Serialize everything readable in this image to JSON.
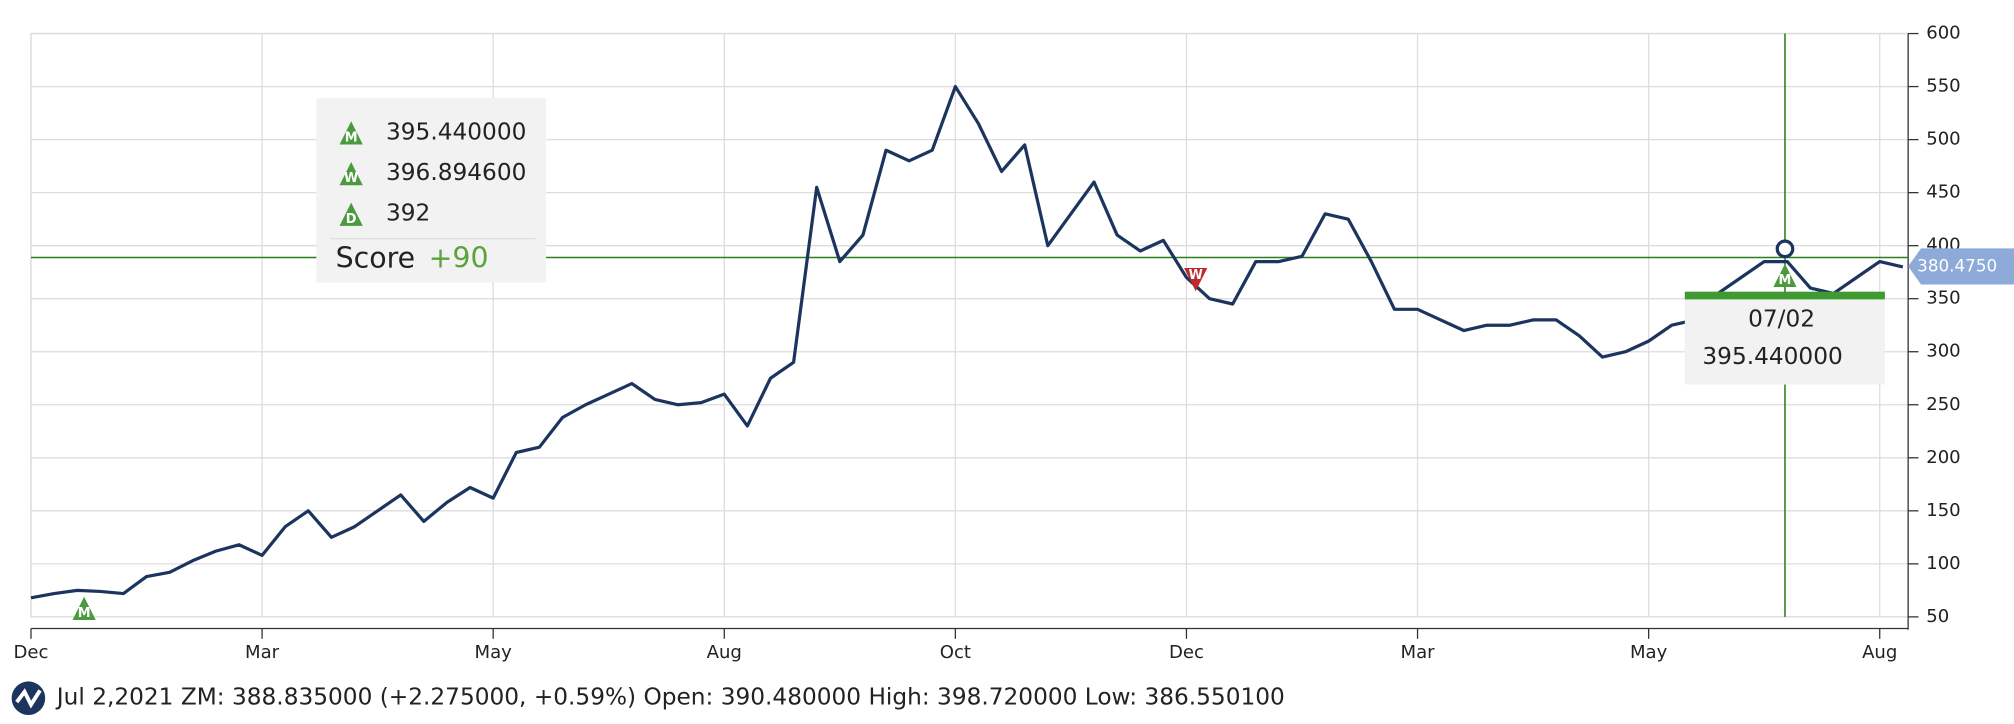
{
  "chart_data": {
    "type": "line",
    "categories": [
      "Dec",
      null,
      null,
      null,
      null,
      null,
      null,
      null,
      null,
      null,
      "Mar",
      null,
      null,
      null,
      null,
      null,
      null,
      null,
      null,
      null,
      "May",
      null,
      null,
      null,
      null,
      null,
      null,
      null,
      null,
      null,
      "Aug",
      null,
      null,
      null,
      null,
      null,
      null,
      null,
      null,
      null,
      "Oct",
      null,
      null,
      null,
      null,
      null,
      null,
      null,
      null,
      null,
      "Dec",
      null,
      null,
      null,
      null,
      null,
      null,
      null,
      null,
      null,
      "Mar",
      null,
      null,
      null,
      null,
      null,
      null,
      null,
      null,
      null,
      "May",
      null,
      null,
      null,
      null,
      null,
      null,
      null,
      null,
      null,
      "Aug",
      null
    ],
    "values": [
      68,
      72,
      75,
      74,
      72,
      88,
      92,
      103,
      112,
      118,
      108,
      135,
      150,
      125,
      135,
      150,
      165,
      140,
      158,
      172,
      162,
      205,
      210,
      238,
      250,
      260,
      270,
      255,
      250,
      252,
      260,
      230,
      275,
      290,
      455,
      385,
      410,
      490,
      480,
      490,
      550,
      515,
      470,
      495,
      400,
      430,
      460,
      410,
      395,
      405,
      370,
      350,
      345,
      385,
      385,
      390,
      430,
      425,
      385,
      340,
      340,
      330,
      320,
      325,
      325,
      330,
      330,
      315,
      295,
      300,
      310,
      325,
      330,
      355,
      370,
      385,
      385,
      360,
      355,
      370,
      385,
      380
    ],
    "color": "#1b355f",
    "ylim": [
      50,
      600
    ],
    "yticks": [
      50,
      100,
      150,
      200,
      250,
      300,
      350,
      400,
      450,
      500,
      550,
      600
    ],
    "grid": true,
    "crosshair": {
      "index": 75.9,
      "price": 388.835
    },
    "last_price": {
      "value": 380.475,
      "label": "380.4750"
    },
    "signals": [
      {
        "letter": "M",
        "direction": "up",
        "index": 2.3,
        "price": 58
      },
      {
        "letter": "W",
        "direction": "down",
        "index": 50.4,
        "price": 368
      },
      {
        "letter": "M",
        "direction": "up",
        "index": 75.9,
        "price": 372
      }
    ],
    "legend_box": {
      "items": [
        {
          "icon": "M",
          "value": "395.440000"
        },
        {
          "icon": "W",
          "value": "396.894600"
        },
        {
          "icon": "D",
          "value": "392"
        }
      ],
      "score_label": "Score",
      "score": "+90"
    },
    "tooltip": {
      "date": "07/02",
      "value": "395.440000"
    },
    "footer": "Jul 2,2021 ZM: 388.835000 (+2.275000, +0.59%) Open: 390.480000 High: 398.720000 Low: 386.550100"
  }
}
